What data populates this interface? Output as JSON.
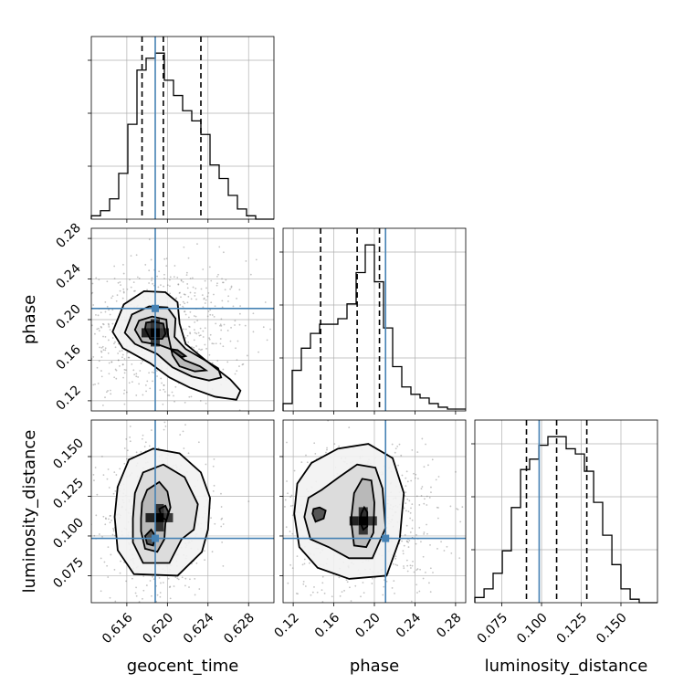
{
  "chart_data": {
    "type": "corner",
    "parameters": [
      "geocent_time",
      "phase",
      "luminosity_distance"
    ],
    "truths": {
      "geocent_time": 0.6188,
      "phase": 0.211,
      "luminosity_distance": 0.0985
    },
    "colors": {
      "truth": "#4682b4",
      "line": "#000000",
      "grid": "#b0b0b0",
      "scatter": "#808080"
    },
    "grid": true,
    "axes": {
      "geocent_time": {
        "range": [
          0.6125,
          0.6305
        ],
        "ticks": [
          0.616,
          0.62,
          0.624,
          0.628
        ],
        "tick_labels": [
          "0.616",
          "0.620",
          "0.624",
          "0.628"
        ]
      },
      "phase": {
        "range": [
          0.11,
          0.29
        ],
        "ticks": [
          0.12,
          0.16,
          0.2,
          0.24,
          0.28
        ],
        "tick_labels": [
          "0.12",
          "0.16",
          "0.20",
          "0.24",
          "0.28"
        ]
      },
      "luminosity_distance": {
        "range": [
          0.058,
          0.173
        ],
        "ticks": [
          0.075,
          0.1,
          0.125,
          0.15
        ],
        "tick_labels": [
          "0.075",
          "0.100",
          "0.125",
          "0.150"
        ]
      }
    },
    "histograms": [
      {
        "parameter": "geocent_time",
        "bin_edges": [
          0.6125,
          0.6134,
          0.6143,
          0.6152,
          0.6161,
          0.617,
          0.6179,
          0.6188,
          0.6197,
          0.6206,
          0.6215,
          0.6224,
          0.6233,
          0.6242,
          0.6251,
          0.626,
          0.6269,
          0.6278,
          0.6287,
          0.6296,
          0.6305
        ],
        "counts": [
          2,
          5,
          12,
          27,
          56,
          88,
          95,
          98,
          82,
          73,
          64,
          58,
          50,
          32,
          24,
          14,
          6,
          2,
          0,
          0
        ],
        "quantiles": [
          0.6175,
          0.6196,
          0.6233
        ]
      },
      {
        "parameter": "phase",
        "bin_edges": [
          0.11,
          0.119,
          0.128,
          0.137,
          0.146,
          0.155,
          0.164,
          0.173,
          0.182,
          0.191,
          0.2,
          0.209,
          0.218,
          0.227,
          0.236,
          0.245,
          0.254,
          0.263,
          0.272,
          0.281,
          0.29
        ],
        "counts": [
          4,
          22,
          34,
          42,
          47,
          47,
          50,
          58,
          75,
          90,
          70,
          45,
          24,
          13,
          9,
          7,
          4,
          2,
          1,
          1
        ],
        "quantiles": [
          0.147,
          0.183,
          0.205
        ]
      },
      {
        "parameter": "luminosity_distance",
        "bin_edges": [
          0.058,
          0.0638,
          0.0695,
          0.0753,
          0.081,
          0.0868,
          0.0925,
          0.0983,
          0.104,
          0.1098,
          0.1155,
          0.1213,
          0.127,
          0.1328,
          0.1385,
          0.1443,
          0.15,
          0.1558,
          0.1615,
          0.1673,
          0.173
        ],
        "counts": [
          3,
          8,
          17,
          30,
          55,
          77,
          83,
          91,
          96,
          96,
          89,
          86,
          76,
          58,
          39,
          22,
          8,
          2,
          0,
          0
        ],
        "quantiles": [
          0.0905,
          0.1095,
          0.1285
        ]
      }
    ],
    "joint": [
      {
        "x": "geocent_time",
        "y": "phase",
        "center": [
          0.6188,
          0.187
        ],
        "contours": [
          [
            [
              0.6178,
              0.191
            ],
            [
              0.6183,
              0.181
            ],
            [
              0.6195,
              0.181
            ],
            [
              0.6198,
              0.186
            ],
            [
              0.6196,
              0.196
            ],
            [
              0.6186,
              0.198
            ],
            [
              0.6179,
              0.197
            ]
          ],
          [
            [
              0.6203,
              0.171
            ],
            [
              0.621,
              0.17
            ],
            [
              0.6218,
              0.164
            ],
            [
              0.6214,
              0.163
            ],
            [
              0.6208,
              0.167
            ],
            [
              0.6204,
              0.17
            ]
          ],
          [
            [
              0.6168,
              0.19
            ],
            [
              0.6175,
              0.178
            ],
            [
              0.6192,
              0.175
            ],
            [
              0.6203,
              0.171
            ],
            [
              0.6217,
              0.16
            ],
            [
              0.6232,
              0.154
            ],
            [
              0.6238,
              0.15
            ],
            [
              0.6227,
              0.149
            ],
            [
              0.6212,
              0.154
            ],
            [
              0.6205,
              0.165
            ],
            [
              0.62,
              0.188
            ],
            [
              0.6199,
              0.2
            ],
            [
              0.6185,
              0.203
            ],
            [
              0.6172,
              0.199
            ]
          ],
          [
            [
              0.6158,
              0.187
            ],
            [
              0.6168,
              0.176
            ],
            [
              0.619,
              0.166
            ],
            [
              0.6205,
              0.153
            ],
            [
              0.6224,
              0.144
            ],
            [
              0.6241,
              0.14
            ],
            [
              0.6253,
              0.143
            ],
            [
              0.625,
              0.152
            ],
            [
              0.6237,
              0.16
            ],
            [
              0.6218,
              0.171
            ],
            [
              0.6207,
              0.183
            ],
            [
              0.6208,
              0.201
            ],
            [
              0.62,
              0.212
            ],
            [
              0.6182,
              0.213
            ],
            [
              0.6165,
              0.205
            ]
          ],
          [
            [
              0.6146,
              0.188
            ],
            [
              0.6156,
              0.172
            ],
            [
              0.6183,
              0.157
            ],
            [
              0.6202,
              0.143
            ],
            [
              0.6222,
              0.133
            ],
            [
              0.6247,
              0.124
            ],
            [
              0.6268,
              0.121
            ],
            [
              0.6272,
              0.13
            ],
            [
              0.6262,
              0.141
            ],
            [
              0.624,
              0.158
            ],
            [
              0.6218,
              0.176
            ],
            [
              0.6212,
              0.196
            ],
            [
              0.621,
              0.217
            ],
            [
              0.6198,
              0.227
            ],
            [
              0.6177,
              0.228
            ],
            [
              0.6157,
              0.215
            ]
          ]
        ]
      },
      {
        "x": "geocent_time",
        "y": "luminosity_distance",
        "center": [
          0.6192,
          0.1115
        ],
        "contours": [
          [
            [
              0.6192,
              0.117
            ],
            [
              0.6194,
              0.112
            ],
            [
              0.6199,
              0.11
            ],
            [
              0.6201,
              0.115
            ],
            [
              0.6198,
              0.119
            ]
          ],
          [
            [
              0.6178,
              0.1
            ],
            [
              0.618,
              0.095
            ],
            [
              0.6186,
              0.094
            ],
            [
              0.6188,
              0.1
            ],
            [
              0.6184,
              0.104
            ]
          ],
          [
            [
              0.6174,
              0.111
            ],
            [
              0.6174,
              0.103
            ],
            [
              0.6178,
              0.092
            ],
            [
              0.619,
              0.09
            ],
            [
              0.6197,
              0.098
            ],
            [
              0.6198,
              0.108
            ],
            [
              0.6203,
              0.118
            ],
            [
              0.62,
              0.128
            ],
            [
              0.6192,
              0.134
            ],
            [
              0.618,
              0.129
            ],
            [
              0.6175,
              0.121
            ]
          ],
          [
            [
              0.6166,
              0.111
            ],
            [
              0.6166,
              0.096
            ],
            [
              0.6176,
              0.083
            ],
            [
              0.6202,
              0.083
            ],
            [
              0.6214,
              0.098
            ],
            [
              0.6226,
              0.104
            ],
            [
              0.623,
              0.12
            ],
            [
              0.6217,
              0.137
            ],
            [
              0.6196,
              0.145
            ],
            [
              0.6176,
              0.14
            ],
            [
              0.6168,
              0.127
            ]
          ],
          [
            [
              0.6148,
              0.112
            ],
            [
              0.6151,
              0.091
            ],
            [
              0.6167,
              0.076
            ],
            [
              0.621,
              0.075
            ],
            [
              0.6234,
              0.09
            ],
            [
              0.624,
              0.104
            ],
            [
              0.6242,
              0.124
            ],
            [
              0.6233,
              0.14
            ],
            [
              0.6212,
              0.152
            ],
            [
              0.6186,
              0.155
            ],
            [
              0.6162,
              0.148
            ],
            [
              0.6151,
              0.131
            ]
          ]
        ]
      },
      {
        "x": "phase",
        "y": "luminosity_distance",
        "center": [
          0.189,
          0.1095
        ],
        "contours": [
          [
            [
              0.186,
              0.109
            ],
            [
              0.189,
              0.104
            ],
            [
              0.193,
              0.106
            ],
            [
              0.193,
              0.115
            ],
            [
              0.19,
              0.118
            ],
            [
              0.187,
              0.114
            ]
          ],
          [
            [
              0.139,
              0.114
            ],
            [
              0.142,
              0.109
            ],
            [
              0.15,
              0.111
            ],
            [
              0.152,
              0.116
            ],
            [
              0.146,
              0.118
            ],
            [
              0.14,
              0.117
            ]
          ],
          [
            [
              0.177,
              0.11
            ],
            [
              0.18,
              0.094
            ],
            [
              0.192,
              0.093
            ],
            [
              0.199,
              0.102
            ],
            [
              0.2,
              0.121
            ],
            [
              0.197,
              0.135
            ],
            [
              0.188,
              0.136
            ],
            [
              0.18,
              0.127
            ]
          ],
          [
            [
              0.131,
              0.112
            ],
            [
              0.137,
              0.098
            ],
            [
              0.155,
              0.093
            ],
            [
              0.175,
              0.086
            ],
            [
              0.198,
              0.086
            ],
            [
              0.211,
              0.105
            ],
            [
              0.208,
              0.13
            ],
            [
              0.201,
              0.143
            ],
            [
              0.183,
              0.145
            ],
            [
              0.165,
              0.137
            ],
            [
              0.148,
              0.129
            ],
            [
              0.135,
              0.124
            ]
          ],
          [
            [
              0.121,
              0.114
            ],
            [
              0.126,
              0.093
            ],
            [
              0.144,
              0.08
            ],
            [
              0.175,
              0.073
            ],
            [
              0.212,
              0.075
            ],
            [
              0.225,
              0.098
            ],
            [
              0.229,
              0.127
            ],
            [
              0.218,
              0.149
            ],
            [
              0.194,
              0.158
            ],
            [
              0.164,
              0.155
            ],
            [
              0.138,
              0.146
            ],
            [
              0.124,
              0.133
            ]
          ]
        ]
      }
    ]
  }
}
